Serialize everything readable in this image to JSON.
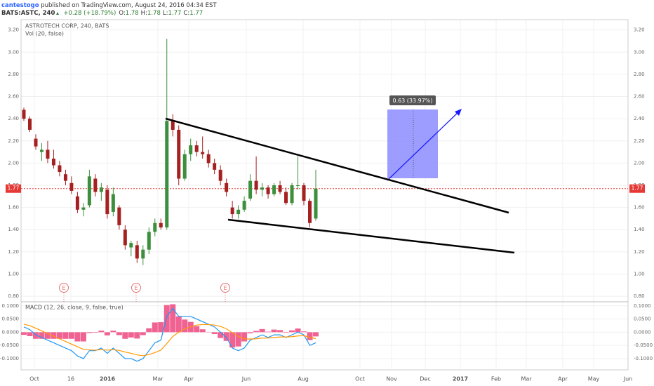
{
  "header": {
    "author": "cantestogo",
    "published": " published on TradingView.com, August 24, 2016 04:34 EST",
    "symbol": "BATS:ASTC, 240",
    "change": "+0.28 (+18.79%)",
    "ohlc": [
      {
        "label": "O:",
        "value": "1.78"
      },
      {
        "label": "H:",
        "value": "1.78"
      },
      {
        "label": "L:",
        "value": "1.77"
      },
      {
        "label": "C:",
        "value": "1.77"
      }
    ]
  },
  "chart_data": {
    "type": "candlestick",
    "title": "ASTROTECH CORP, 240, BATS",
    "volume_label": "Vol (20, false)",
    "up_color": "#3c8f3c",
    "down_color": "#a52020",
    "candles": [
      [
        2.48,
        2.5,
        2.38,
        2.4
      ],
      [
        2.4,
        2.42,
        2.28,
        2.3
      ],
      [
        2.22,
        2.26,
        2.12,
        2.15
      ],
      [
        2.1,
        2.18,
        2.02,
        2.12
      ],
      [
        2.12,
        2.2,
        2.0,
        2.04
      ],
      [
        2.04,
        2.12,
        1.95,
        1.98
      ],
      [
        1.98,
        2.02,
        1.88,
        1.92
      ],
      [
        1.9,
        1.94,
        1.8,
        1.84
      ],
      [
        1.82,
        1.88,
        1.72,
        1.75
      ],
      [
        1.7,
        1.74,
        1.55,
        1.58
      ],
      [
        1.58,
        1.64,
        1.52,
        1.6
      ],
      [
        1.62,
        1.94,
        1.6,
        1.88
      ],
      [
        1.86,
        1.9,
        1.7,
        1.74
      ],
      [
        1.74,
        1.82,
        1.66,
        1.78
      ],
      [
        1.76,
        1.8,
        1.5,
        1.54
      ],
      [
        1.56,
        1.78,
        1.52,
        1.72
      ],
      [
        1.6,
        1.62,
        1.4,
        1.44
      ],
      [
        1.4,
        1.44,
        1.22,
        1.26
      ],
      [
        1.24,
        1.3,
        1.16,
        1.28
      ],
      [
        1.26,
        1.3,
        1.1,
        1.14
      ],
      [
        1.14,
        1.26,
        1.08,
        1.22
      ],
      [
        1.22,
        1.42,
        1.18,
        1.38
      ],
      [
        1.38,
        1.5,
        1.34,
        1.46
      ],
      [
        1.46,
        1.5,
        1.4,
        1.42
      ],
      [
        1.42,
        3.12,
        1.4,
        2.38
      ],
      [
        2.38,
        2.44,
        2.24,
        2.3
      ],
      [
        2.3,
        2.34,
        1.8,
        1.86
      ],
      [
        1.86,
        2.12,
        1.84,
        2.08
      ],
      [
        2.08,
        2.22,
        2.02,
        2.16
      ],
      [
        2.16,
        2.2,
        2.06,
        2.1
      ],
      [
        2.1,
        2.24,
        2.04,
        2.08
      ],
      [
        2.08,
        2.12,
        1.96,
        2.0
      ],
      [
        2.0,
        2.04,
        1.9,
        1.94
      ],
      [
        1.94,
        1.98,
        1.8,
        1.84
      ],
      [
        1.82,
        1.86,
        1.7,
        1.74
      ],
      [
        1.6,
        1.66,
        1.5,
        1.54
      ],
      [
        1.54,
        1.62,
        1.5,
        1.58
      ],
      [
        1.58,
        1.7,
        1.56,
        1.66
      ],
      [
        1.68,
        1.9,
        1.66,
        1.84
      ],
      [
        1.84,
        2.06,
        1.72,
        1.76
      ],
      [
        1.76,
        1.82,
        1.7,
        1.78
      ],
      [
        1.78,
        1.8,
        1.68,
        1.72
      ],
      [
        1.72,
        1.82,
        1.7,
        1.8
      ],
      [
        1.8,
        1.84,
        1.72,
        1.74
      ],
      [
        1.74,
        1.78,
        1.62,
        1.64
      ],
      [
        1.64,
        1.82,
        1.62,
        1.8
      ],
      [
        1.8,
        2.06,
        1.76,
        1.8
      ],
      [
        1.8,
        1.82,
        1.62,
        1.66
      ],
      [
        1.66,
        1.68,
        1.42,
        1.46
      ],
      [
        1.5,
        1.94,
        1.48,
        1.77
      ]
    ],
    "ylim": [
      0.75,
      3.28
    ],
    "yticks": [
      {
        "value": 0.8,
        "label": "0.80"
      },
      {
        "value": 1,
        "label": "1.00"
      },
      {
        "value": 1.2,
        "label": "1.20"
      },
      {
        "value": 1.4,
        "label": "1.40"
      },
      {
        "value": 1.6,
        "label": "1.60"
      },
      {
        "value": 1.8,
        "label": "1.80"
      },
      {
        "value": 2,
        "label": "2.00"
      },
      {
        "value": 2.2,
        "label": "2.20"
      },
      {
        "value": 2.4,
        "label": "2.40"
      },
      {
        "value": 2.6,
        "label": "2.60"
      },
      {
        "value": 2.8,
        "label": "2.80"
      },
      {
        "value": 3,
        "label": "3.00"
      },
      {
        "value": 3.2,
        "label": "3.20"
      }
    ],
    "last_price": 1.77,
    "last_price_color": "#e53935",
    "x_labels": [
      "Oct",
      "16",
      "2016",
      "Mar",
      "Apr",
      "Jun",
      "Aug",
      "Oct",
      "Nov",
      "Dec",
      "2017",
      "Feb",
      "Mar",
      "Apr",
      "May",
      "Jun"
    ],
    "earnings": [
      "E",
      "E",
      "E"
    ],
    "measure_label": "0.63 (33.97%)",
    "macd": {
      "title": "MACD (12, 26, close, 9, false, true)",
      "ylim": [
        -0.14,
        0.11
      ],
      "yticks": [
        {
          "value": 0.1,
          "label": "0.1000"
        },
        {
          "value": 0.05,
          "label": "0.0500"
        },
        {
          "value": 0,
          "label": "0.0000"
        },
        {
          "value": -0.05,
          "label": "-0.0500"
        },
        {
          "value": -0.1,
          "label": "-0.1000"
        }
      ],
      "macd": {
        "color": "#2196f3",
        "values": [
          0.02,
          0.01,
          -0.01,
          -0.02,
          -0.03,
          -0.04,
          -0.05,
          -0.06,
          -0.07,
          -0.09,
          -0.1,
          -0.07,
          -0.07,
          -0.06,
          -0.08,
          -0.06,
          -0.08,
          -0.1,
          -0.1,
          -0.11,
          -0.1,
          -0.07,
          -0.04,
          -0.03,
          0.06,
          0.09,
          0.06,
          0.06,
          0.06,
          0.05,
          0.04,
          0.03,
          0.02,
          0.0,
          -0.02,
          -0.06,
          -0.07,
          -0.06,
          -0.03,
          -0.02,
          -0.01,
          -0.02,
          -0.01,
          -0.01,
          -0.02,
          -0.01,
          0.0,
          -0.01,
          -0.05,
          -0.04
        ]
      },
      "signal": {
        "color": "#ff9800",
        "values": [
          0.03,
          0.025,
          0.015,
          0.005,
          -0.005,
          -0.015,
          -0.025,
          -0.035,
          -0.045,
          -0.055,
          -0.065,
          -0.067,
          -0.068,
          -0.066,
          -0.068,
          -0.066,
          -0.069,
          -0.075,
          -0.08,
          -0.086,
          -0.089,
          -0.085,
          -0.077,
          -0.068,
          -0.043,
          -0.016,
          0.0,
          0.012,
          0.021,
          0.027,
          0.029,
          0.029,
          0.027,
          0.022,
          0.013,
          -0.002,
          -0.016,
          -0.025,
          -0.026,
          -0.025,
          -0.022,
          -0.022,
          -0.02,
          -0.018,
          -0.018,
          -0.017,
          -0.014,
          -0.013,
          -0.02,
          -0.024
        ]
      },
      "histogram": {
        "color": "#f06292",
        "values": [
          -0.01,
          -0.015,
          -0.025,
          -0.025,
          -0.025,
          -0.025,
          -0.025,
          -0.025,
          -0.025,
          -0.035,
          -0.035,
          -0.003,
          -0.002,
          0.006,
          -0.012,
          0.006,
          -0.011,
          -0.025,
          -0.02,
          -0.024,
          -0.011,
          0.015,
          0.037,
          0.038,
          0.103,
          0.106,
          0.06,
          0.048,
          0.039,
          0.023,
          0.011,
          0.001,
          -0.007,
          -0.022,
          -0.033,
          -0.058,
          -0.054,
          -0.035,
          -0.004,
          0.005,
          0.012,
          0.002,
          0.01,
          0.008,
          -0.002,
          0.007,
          0.014,
          0.003,
          -0.03,
          -0.016
        ]
      }
    }
  }
}
